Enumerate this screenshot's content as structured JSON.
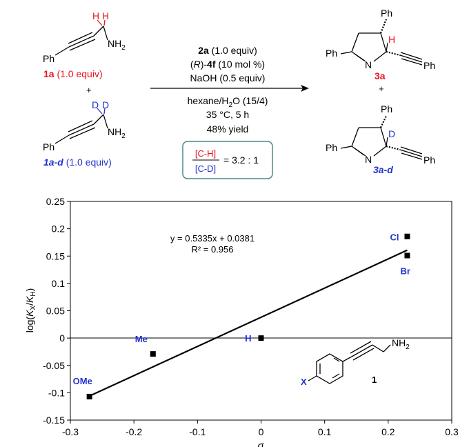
{
  "scheme": {
    "reactant_top": {
      "h_label_1": "H",
      "h_label_2": "H",
      "nh2": "NH2",
      "ph": "Ph",
      "id": "1a",
      "equiv": "(1.0 equiv)"
    },
    "plus_left": "+",
    "reactant_bottom": {
      "d_label_1": "D",
      "d_label_2": "D",
      "nh2": "NH2",
      "ph": "Ph",
      "id": "1a-d",
      "equiv": "(1.0 equiv)"
    },
    "conditions_above": {
      "line1_id": "2a",
      "line1_rest": "(1.0 equiv)",
      "line2_pre": "(R)-",
      "line2_id": "4f",
      "line2_rest": "(10 mol %)",
      "line3": "NaOH (0.5 equiv)"
    },
    "conditions_below": {
      "line1": "hexane/H2O (15/4)",
      "line2": "35 °C, 5 h",
      "line3": "48% yield"
    },
    "kie_box": {
      "numerator": "[C-H]",
      "denominator": "[C-D]",
      "value": "= 3.2 : 1"
    },
    "product_top": {
      "ph_top": "Ph",
      "ph_left": "Ph",
      "ph_right": "Ph",
      "n": "N",
      "h": "H",
      "id": "3a"
    },
    "plus_right": "+",
    "product_bottom": {
      "ph_top": "Ph",
      "ph_left": "Ph",
      "ph_right": "Ph",
      "n": "N",
      "d": "D",
      "id": "3a-d"
    },
    "colors": {
      "h_red": "#e8111a",
      "d_blue": "#2233cc",
      "label_blue": "#2233cc",
      "box_border": "#4a8a86"
    }
  },
  "chart_data": {
    "type": "scatter",
    "title": "",
    "xlabel": "σ",
    "ylabel": "log(KX/KH)",
    "xlim": [
      -0.3,
      0.3
    ],
    "ylim": [
      -0.15,
      0.25
    ],
    "x_ticks": [
      "-0.3",
      "-0.2",
      "-0.1",
      "0",
      "0.1",
      "0.2",
      "0.3"
    ],
    "y_ticks": [
      "0.25",
      "0.2",
      "0.15",
      "0.1",
      "0.05",
      "0",
      "-0.05",
      "-0.1",
      "-0.15"
    ],
    "points": [
      {
        "label": "OMe",
        "x": -0.27,
        "y": -0.107
      },
      {
        "label": "Me",
        "x": -0.17,
        "y": -0.029
      },
      {
        "label": "H",
        "x": 0.0,
        "y": 0.0
      },
      {
        "label": "Cl",
        "x": 0.23,
        "y": 0.186
      },
      {
        "label": "Br",
        "x": 0.23,
        "y": 0.151
      }
    ],
    "trendline": {
      "slope": 0.5335,
      "intercept": 0.0381,
      "x_from": -0.27,
      "x_to": 0.23
    },
    "equation": "y = 0.5335x + 0.0381",
    "r_squared": "R² = 0.956",
    "grid": false,
    "inset": {
      "x_label": "X",
      "nh2": "NH2",
      "id": "1"
    }
  }
}
